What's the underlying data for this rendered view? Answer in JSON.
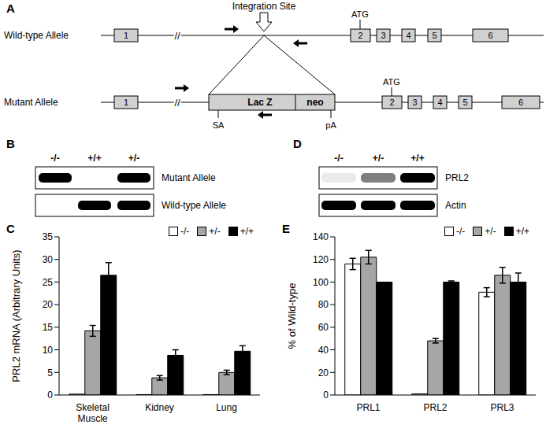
{
  "panels": {
    "A": {
      "panel_label": "A",
      "integration_site": "Integration Site",
      "start_codon": "ATG",
      "break_mark": "//",
      "wild_type": {
        "name": "Wild-type Allele",
        "exons": [
          "1",
          "2",
          "3",
          "4",
          "5",
          "6"
        ]
      },
      "mutant": {
        "name": "Mutant Allele",
        "exons": [
          "1",
          "2",
          "3",
          "4",
          "5",
          "6"
        ],
        "cassette": [
          "Lac Z",
          "neo"
        ],
        "splice_acceptor": "SA",
        "polyA": "pA"
      }
    },
    "B": {
      "panel_label": "B",
      "lanes": [
        "-/-",
        "+/+",
        "+/-"
      ],
      "rows": [
        {
          "label": "Mutant Allele",
          "bands": [
            true,
            false,
            true
          ]
        },
        {
          "label": "Wild-type Allele",
          "bands": [
            false,
            true,
            true
          ]
        }
      ]
    },
    "D": {
      "panel_label": "D",
      "lanes": [
        "-/-",
        "+/-",
        "+/+"
      ],
      "rows": [
        {
          "label": "PRL2",
          "band_intensity": [
            0.08,
            0.5,
            1
          ]
        },
        {
          "label": "Actin",
          "band_intensity": [
            1,
            1,
            1
          ]
        }
      ]
    }
  },
  "chart_data": [
    {
      "panel_label": "C",
      "type": "bar",
      "y_label": "PRL2 mRNA (Arbitrary Units)",
      "categories": [
        "Skeletal Muscle",
        "Kidney",
        "Lung"
      ],
      "series": [
        {
          "name": "-/-",
          "color": "#ffffff",
          "values": [
            0.2,
            0.1,
            0.1
          ],
          "errors": [
            0,
            0,
            0
          ]
        },
        {
          "name": "+/-",
          "color": "#a6a6a6",
          "values": [
            14.2,
            3.8,
            5.0
          ],
          "errors": [
            1.2,
            0.5,
            0.5
          ]
        },
        {
          "name": "+/+",
          "color": "#000000",
          "values": [
            26.5,
            8.8,
            9.7
          ],
          "errors": [
            2.8,
            1.2,
            1.2
          ]
        }
      ],
      "ylim": [
        0,
        35
      ],
      "yticks": [
        0,
        5,
        10,
        15,
        20,
        25,
        30,
        35
      ],
      "legend": "top-right"
    },
    {
      "panel_label": "E",
      "type": "bar",
      "y_label": "% of Wild-type",
      "categories": [
        "PRL1",
        "PRL2",
        "PRL3"
      ],
      "series": [
        {
          "name": "-/-",
          "color": "#ffffff",
          "values": [
            116,
            1,
            91
          ],
          "errors": [
            5,
            0,
            4
          ]
        },
        {
          "name": "+/-",
          "color": "#a6a6a6",
          "values": [
            122,
            48,
            106
          ],
          "errors": [
            6,
            2,
            7
          ]
        },
        {
          "name": "+/+",
          "color": "#000000",
          "values": [
            100,
            100,
            100
          ],
          "errors": [
            0,
            1,
            8
          ]
        }
      ],
      "ylim": [
        0,
        140
      ],
      "yticks": [
        0,
        20,
        40,
        60,
        80,
        100,
        120,
        140
      ],
      "legend": "top-right"
    }
  ]
}
